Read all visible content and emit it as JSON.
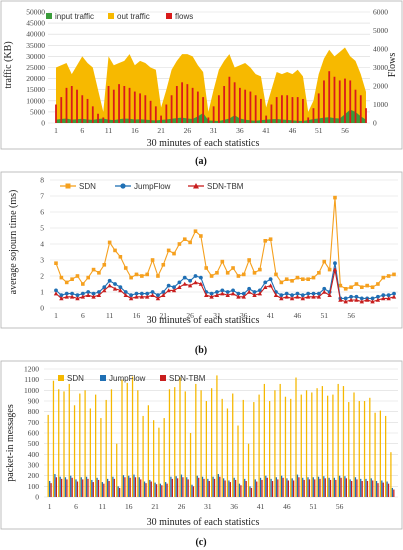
{
  "colors": {
    "input": "#3a9c3a",
    "out": "#f7b900",
    "flows": "#d91a1a",
    "sdn": "#f5a01e",
    "jumpflow": "#1f6fb4",
    "sdntbm": "#c81e1e",
    "grid": "#d9d9d9",
    "border": "#b0b0b0"
  },
  "chart_data": [
    {
      "type": "area",
      "panel_label": "(a)",
      "xlabel": "30 minutes of each statistics",
      "ylabel": "traffic (KB)",
      "y2label": "Flows",
      "ylim": [
        0,
        50000
      ],
      "y2lim": [
        0,
        6000
      ],
      "yticks": [
        "0",
        "5000",
        "10000",
        "15000",
        "20000",
        "25000",
        "30000",
        "35000",
        "40000",
        "45000",
        "50000"
      ],
      "y2ticks": [
        "0",
        "1000",
        "2000",
        "3000",
        "4000",
        "5000",
        "6000"
      ],
      "xticks": [
        "1",
        "6",
        "11",
        "16",
        "21",
        "26",
        "31",
        "36",
        "41",
        "46",
        "51",
        "56"
      ],
      "legend_placement": "top-left",
      "series": [
        {
          "name": "input traffic",
          "kind": "area",
          "axis": "left",
          "values": [
            1500,
            1800,
            2000,
            1500,
            1700,
            1900,
            1600,
            1400,
            1800,
            2000,
            1500,
            1300,
            1700,
            2000,
            1900,
            1600,
            1700,
            1500,
            1300,
            1100,
            1400,
            1600,
            1900,
            2200,
            2400,
            2000,
            1800,
            3000,
            4500,
            1200,
            1000,
            900,
            1400,
            2000,
            3500,
            2000,
            1500,
            1200,
            1000,
            1300,
            1500,
            1700,
            1800,
            1600,
            1400,
            1200,
            1000,
            900,
            1300,
            1800,
            2000,
            2400,
            2600,
            2200,
            2000,
            4000,
            6000,
            5000,
            3000,
            1500
          ]
        },
        {
          "name": "out traffic",
          "kind": "area",
          "axis": "left",
          "values": [
            25000,
            26000,
            27000,
            22000,
            26000,
            30000,
            27000,
            25000,
            15000,
            5000,
            30000,
            26000,
            27000,
            28000,
            31000,
            26000,
            28000,
            27000,
            25000,
            24000,
            7000,
            15000,
            24000,
            28000,
            31000,
            31000,
            30000,
            26000,
            23000,
            5000,
            15000,
            24000,
            28000,
            31000,
            25000,
            26000,
            27000,
            25000,
            22000,
            21000,
            7000,
            15000,
            23000,
            22000,
            23000,
            22000,
            24000,
            21000,
            5000,
            10000,
            22000,
            29000,
            33000,
            30000,
            32000,
            34000,
            30000,
            28000,
            22000,
            14000
          ]
        },
        {
          "name": "flows",
          "kind": "bar",
          "axis": "right",
          "values": [
            1000,
            1400,
            1900,
            2000,
            1800,
            1500,
            1300,
            900,
            500,
            300,
            2000,
            1800,
            2100,
            2000,
            1900,
            1700,
            1600,
            1500,
            1200,
            900,
            400,
            1000,
            1500,
            2000,
            2200,
            2100,
            1900,
            1700,
            1400,
            300,
            900,
            1500,
            2000,
            2500,
            2200,
            1900,
            1800,
            1700,
            1500,
            1300,
            400,
            1000,
            1400,
            1500,
            1500,
            1400,
            1400,
            1300,
            300,
            800,
            1600,
            2300,
            2800,
            2500,
            2300,
            2400,
            2300,
            1800,
            1500,
            800
          ]
        }
      ]
    },
    {
      "type": "line",
      "panel_label": "(b)",
      "xlabel": "30 minutes of each statistics",
      "ylabel": "average sojourn time (ms)",
      "ylim": [
        0,
        8
      ],
      "yticks": [
        "0",
        "1",
        "2",
        "3",
        "4",
        "5",
        "6",
        "7",
        "8"
      ],
      "xticks": [
        "1",
        "6",
        "11",
        "16",
        "21",
        "26",
        "31",
        "36",
        "41",
        "46",
        "51",
        "56"
      ],
      "legend_placement": "top",
      "series": [
        {
          "name": "SDN",
          "values": [
            2.8,
            1.9,
            1.6,
            1.8,
            2.0,
            1.5,
            1.9,
            2.4,
            2.2,
            2.7,
            4.1,
            3.6,
            3.2,
            2.5,
            1.9,
            2.1,
            2.0,
            2.1,
            3.0,
            2.0,
            2.7,
            3.6,
            3.4,
            4.0,
            4.3,
            4.1,
            4.8,
            4.5,
            2.5,
            2.0,
            2.2,
            2.9,
            2.2,
            2.5,
            2.0,
            2.1,
            3.0,
            2.2,
            2.4,
            4.2,
            4.3,
            2.1,
            1.6,
            1.8,
            1.7,
            1.9,
            1.8,
            1.8,
            1.9,
            2.2,
            2.9,
            2.4,
            6.9,
            1.4,
            1.2,
            1.3,
            1.5,
            1.3,
            1.4,
            1.3,
            1.5,
            1.9,
            2.0,
            2.1
          ]
        },
        {
          "name": "JumpFlow",
          "values": [
            1.1,
            0.8,
            0.9,
            0.9,
            0.8,
            0.9,
            1.0,
            0.9,
            1.0,
            1.3,
            1.7,
            1.5,
            1.3,
            1.0,
            0.8,
            0.9,
            0.9,
            0.9,
            1.0,
            0.8,
            1.0,
            1.4,
            1.3,
            1.6,
            1.9,
            1.7,
            2.0,
            1.9,
            1.0,
            0.9,
            1.0,
            1.1,
            1.0,
            1.1,
            0.9,
            0.9,
            1.2,
            1.0,
            1.1,
            1.6,
            1.8,
            1.0,
            0.8,
            0.9,
            0.8,
            0.9,
            0.8,
            0.9,
            0.9,
            0.9,
            1.2,
            1.0,
            2.8,
            0.6,
            0.6,
            0.7,
            0.7,
            0.6,
            0.6,
            0.6,
            0.7,
            0.8,
            0.8,
            0.9
          ]
        },
        {
          "name": "SDN-TBM",
          "values": [
            0.9,
            0.6,
            0.7,
            0.7,
            0.6,
            0.7,
            0.8,
            0.7,
            0.8,
            1.1,
            1.4,
            1.2,
            1.1,
            0.8,
            0.6,
            0.7,
            0.7,
            0.7,
            0.8,
            0.6,
            0.8,
            1.1,
            1.1,
            1.3,
            1.5,
            1.4,
            1.6,
            1.5,
            0.8,
            0.7,
            0.8,
            0.9,
            0.8,
            0.9,
            0.7,
            0.7,
            1.0,
            0.8,
            0.9,
            1.3,
            1.4,
            0.8,
            0.6,
            0.7,
            0.6,
            0.7,
            0.6,
            0.7,
            0.7,
            0.7,
            1.0,
            0.8,
            2.4,
            0.5,
            0.4,
            0.5,
            0.5,
            0.4,
            0.5,
            0.4,
            0.5,
            0.6,
            0.6,
            0.7
          ]
        }
      ]
    },
    {
      "type": "bar",
      "panel_label": "(c)",
      "xlabel": "30 minutes of each statistics",
      "ylabel": "packet-in messages",
      "ylim": [
        0,
        1200
      ],
      "yticks": [
        "0",
        "100",
        "200",
        "300",
        "400",
        "500",
        "600",
        "700",
        "800",
        "900",
        "1000",
        "1100",
        "1200"
      ],
      "xticks": [
        "1",
        "6",
        "11",
        "16",
        "21",
        "26",
        "31",
        "36",
        "41",
        "46",
        "51",
        "56"
      ],
      "legend_placement": "top",
      "series": [
        {
          "name": "SDN",
          "values": [
            770,
            1090,
            1010,
            990,
            1060,
            860,
            970,
            1000,
            830,
            960,
            740,
            910,
            1010,
            500,
            1100,
            1070,
            1130,
            1000,
            760,
            860,
            720,
            650,
            740,
            1010,
            1030,
            1120,
            990,
            600,
            1060,
            1000,
            900,
            1020,
            1140,
            920,
            830,
            970,
            670,
            910,
            500,
            890,
            960,
            1060,
            900,
            1000,
            1060,
            940,
            920,
            1120,
            960,
            1000,
            980,
            1020,
            1040,
            950,
            960,
            1060,
            1040,
            890,
            980,
            900,
            900,
            930,
            790,
            810,
            760,
            420
          ]
        },
        {
          "name": "JumpFlow",
          "values": [
            150,
            215,
            190,
            185,
            200,
            165,
            185,
            190,
            160,
            180,
            140,
            170,
            190,
            100,
            205,
            200,
            210,
            185,
            145,
            160,
            135,
            125,
            140,
            190,
            195,
            210,
            185,
            115,
            200,
            190,
            170,
            190,
            215,
            175,
            155,
            180,
            125,
            170,
            100,
            165,
            180,
            200,
            170,
            185,
            200,
            175,
            175,
            210,
            180,
            185,
            185,
            190,
            195,
            180,
            180,
            200,
            195,
            165,
            185,
            170,
            170,
            175,
            150,
            155,
            145,
            85
          ]
        },
        {
          "name": "SDN-TBM",
          "values": [
            130,
            185,
            170,
            165,
            180,
            145,
            165,
            170,
            140,
            160,
            125,
            150,
            170,
            85,
            185,
            180,
            185,
            165,
            130,
            145,
            120,
            110,
            125,
            170,
            175,
            185,
            165,
            100,
            180,
            170,
            150,
            170,
            190,
            155,
            140,
            160,
            110,
            150,
            85,
            145,
            160,
            180,
            150,
            165,
            180,
            155,
            155,
            185,
            160,
            165,
            165,
            170,
            175,
            160,
            160,
            180,
            175,
            150,
            165,
            150,
            150,
            155,
            130,
            135,
            125,
            70
          ]
        }
      ]
    }
  ]
}
